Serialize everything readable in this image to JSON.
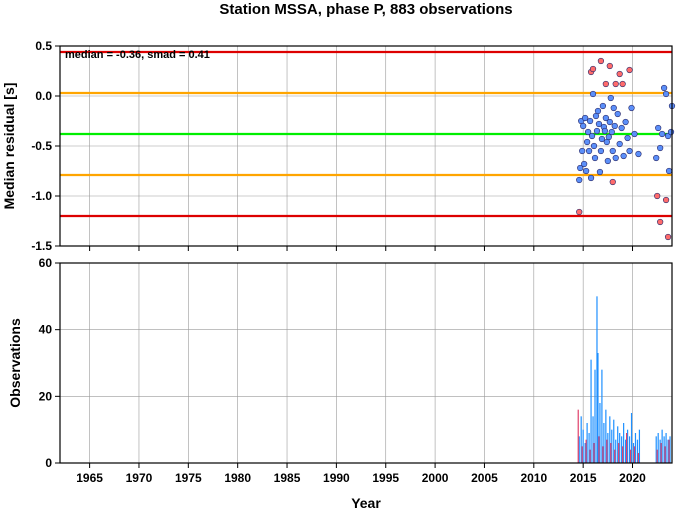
{
  "chart_data": [
    {
      "type": "scatter",
      "title": "Station MSSA, phase P, 883 observations",
      "annotation": "median = -0.36, smad = 0.41",
      "ylabel": "Median residual [s]",
      "xlim": [
        1962,
        2024
      ],
      "ylim": [
        -1.5,
        0.5
      ],
      "yticks": [
        0.5,
        0.0,
        -0.5,
        -1.0,
        -1.5
      ],
      "ytick_labels": [
        "0.5",
        "0.0",
        "-0.5",
        "-1.0",
        "-1.5"
      ],
      "grid": true,
      "reference_lines": [
        {
          "value": 0.44,
          "color": "#dd0000"
        },
        {
          "value": 0.03,
          "color": "#ffa500"
        },
        {
          "value": -0.38,
          "color": "#00ee00"
        },
        {
          "value": -0.79,
          "color": "#ffa500"
        },
        {
          "value": -1.2,
          "color": "#dd0000"
        }
      ],
      "series": [
        {
          "color": "#5b8ff9",
          "points": [
            [
              2014.6,
              -0.84
            ],
            [
              2014.7,
              -0.72
            ],
            [
              2014.8,
              -0.25
            ],
            [
              2014.9,
              -0.55
            ],
            [
              2015.0,
              -0.3
            ],
            [
              2015.1,
              -0.68
            ],
            [
              2015.2,
              -0.22
            ],
            [
              2015.3,
              -0.75
            ],
            [
              2015.4,
              -0.46
            ],
            [
              2015.5,
              -0.36
            ],
            [
              2015.6,
              -0.55
            ],
            [
              2015.7,
              -0.25
            ],
            [
              2015.8,
              -0.82
            ],
            [
              2015.9,
              -0.4
            ],
            [
              2016.0,
              0.02
            ],
            [
              2016.1,
              -0.5
            ],
            [
              2016.2,
              -0.62
            ],
            [
              2016.3,
              -0.2
            ],
            [
              2016.4,
              -0.35
            ],
            [
              2016.5,
              -0.15
            ],
            [
              2016.6,
              -0.28
            ],
            [
              2016.7,
              -0.76
            ],
            [
              2016.8,
              -0.55
            ],
            [
              2016.9,
              -0.43
            ],
            [
              2017.0,
              -0.1
            ],
            [
              2017.1,
              -0.31
            ],
            [
              2017.2,
              -0.35
            ],
            [
              2017.3,
              -0.22
            ],
            [
              2017.4,
              -0.46
            ],
            [
              2017.5,
              -0.65
            ],
            [
              2017.6,
              -0.41
            ],
            [
              2017.7,
              -0.26
            ],
            [
              2017.8,
              -0.02
            ],
            [
              2017.9,
              -0.36
            ],
            [
              2018.0,
              -0.55
            ],
            [
              2018.1,
              -0.12
            ],
            [
              2018.2,
              -0.3
            ],
            [
              2018.3,
              -0.62
            ],
            [
              2018.5,
              -0.18
            ],
            [
              2018.7,
              -0.48
            ],
            [
              2018.9,
              -0.32
            ],
            [
              2019.1,
              -0.6
            ],
            [
              2019.3,
              -0.26
            ],
            [
              2019.5,
              -0.42
            ],
            [
              2019.7,
              -0.55
            ],
            [
              2019.9,
              -0.12
            ],
            [
              2020.2,
              -0.38
            ],
            [
              2020.6,
              -0.58
            ],
            [
              2022.4,
              -0.62
            ],
            [
              2022.6,
              -0.32
            ],
            [
              2022.8,
              -0.52
            ],
            [
              2023.0,
              -0.38
            ],
            [
              2023.2,
              0.08
            ],
            [
              2023.4,
              0.02
            ],
            [
              2023.6,
              -0.4
            ],
            [
              2023.7,
              -0.75
            ],
            [
              2023.9,
              -0.36
            ],
            [
              2024.0,
              -0.1
            ]
          ]
        },
        {
          "color": "#ff6b6b",
          "points": [
            [
              2014.6,
              -1.16
            ],
            [
              2015.8,
              0.24
            ],
            [
              2016.0,
              0.27
            ],
            [
              2016.8,
              0.35
            ],
            [
              2017.3,
              0.12
            ],
            [
              2017.7,
              0.3
            ],
            [
              2018.0,
              -0.86
            ],
            [
              2018.3,
              0.12
            ],
            [
              2018.7,
              0.22
            ],
            [
              2019.0,
              0.12
            ],
            [
              2019.7,
              0.26
            ],
            [
              2022.5,
              -1.0
            ],
            [
              2022.8,
              -1.26
            ],
            [
              2023.4,
              -1.04
            ],
            [
              2023.6,
              -1.41
            ]
          ]
        }
      ]
    },
    {
      "type": "bar",
      "xlabel": "Year",
      "ylabel": "Observations",
      "xlim": [
        1962,
        2024
      ],
      "ylim": [
        0,
        60
      ],
      "xticks": [
        1965,
        1970,
        1975,
        1980,
        1985,
        1990,
        1995,
        2000,
        2005,
        2010,
        2015,
        2020
      ],
      "xtick_labels": [
        "1965",
        "1970",
        "1975",
        "1980",
        "1985",
        "1990",
        "1995",
        "2000",
        "2005",
        "2010",
        "2015",
        "2020"
      ],
      "yticks": [
        0,
        20,
        40,
        60
      ],
      "ytick_labels": [
        "0",
        "20",
        "40",
        "60"
      ],
      "grid": true,
      "series": [
        {
          "color": "#1e90ff",
          "bars": [
            [
              2014.6,
              8
            ],
            [
              2014.8,
              14
            ],
            [
              2015.0,
              10
            ],
            [
              2015.2,
              6
            ],
            [
              2015.4,
              12
            ],
            [
              2015.6,
              9
            ],
            [
              2015.8,
              31
            ],
            [
              2016.0,
              14
            ],
            [
              2016.2,
              28
            ],
            [
              2016.4,
              50
            ],
            [
              2016.5,
              33
            ],
            [
              2016.7,
              18
            ],
            [
              2016.9,
              28
            ],
            [
              2017.1,
              12
            ],
            [
              2017.3,
              16
            ],
            [
              2017.5,
              9
            ],
            [
              2017.7,
              14
            ],
            [
              2017.9,
              10
            ],
            [
              2018.1,
              13
            ],
            [
              2018.3,
              7
            ],
            [
              2018.5,
              11
            ],
            [
              2018.7,
              9
            ],
            [
              2018.9,
              8
            ],
            [
              2019.1,
              12
            ],
            [
              2019.3,
              7
            ],
            [
              2019.5,
              10
            ],
            [
              2019.7,
              8
            ],
            [
              2019.9,
              15
            ],
            [
              2020.1,
              6
            ],
            [
              2020.3,
              9
            ],
            [
              2020.5,
              7
            ],
            [
              2020.7,
              10
            ],
            [
              2022.4,
              8
            ],
            [
              2022.6,
              9
            ],
            [
              2022.8,
              7
            ],
            [
              2023.0,
              10
            ],
            [
              2023.2,
              8
            ],
            [
              2023.4,
              9
            ],
            [
              2023.6,
              7
            ],
            [
              2023.8,
              8
            ]
          ]
        },
        {
          "color": "#e0406a",
          "bars": [
            [
              2014.5,
              16
            ],
            [
              2014.9,
              5
            ],
            [
              2015.3,
              7
            ],
            [
              2015.7,
              4
            ],
            [
              2016.1,
              6
            ],
            [
              2016.6,
              8
            ],
            [
              2017.0,
              5
            ],
            [
              2017.4,
              7
            ],
            [
              2017.8,
              6
            ],
            [
              2018.2,
              4
            ],
            [
              2018.6,
              6
            ],
            [
              2019.0,
              5
            ],
            [
              2019.4,
              9
            ],
            [
              2019.8,
              4
            ],
            [
              2020.2,
              5
            ],
            [
              2020.6,
              3
            ],
            [
              2022.5,
              4
            ],
            [
              2022.9,
              6
            ],
            [
              2023.3,
              5
            ],
            [
              2023.7,
              7
            ]
          ]
        }
      ]
    }
  ]
}
